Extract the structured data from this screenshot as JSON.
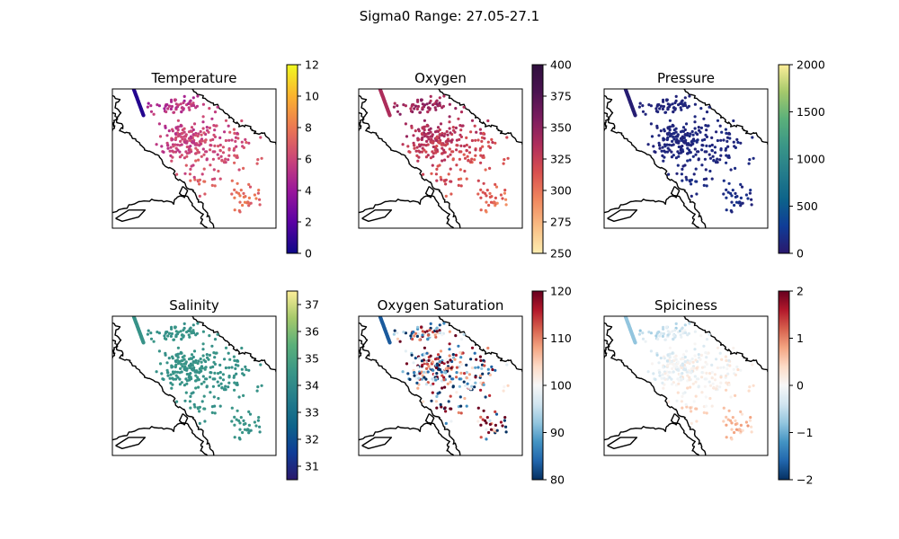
{
  "figure": {
    "suptitle": "Sigma0 Range: 27.05-27.1"
  },
  "chart_data": [
    {
      "type": "scatter",
      "title": "Temperature",
      "colormap": "plasma",
      "colorbar": {
        "range": [
          0,
          12
        ],
        "ticks": [
          "0",
          "2",
          "4",
          "6",
          "8",
          "10",
          "12"
        ]
      },
      "typical_values": [
        5.5,
        7.5
      ],
      "xlabel": "",
      "ylabel": "",
      "grid": false
    },
    {
      "type": "scatter",
      "title": "Oxygen",
      "colormap": "matter",
      "colorbar": {
        "range": [
          250,
          400
        ],
        "ticks": [
          "250",
          "275",
          "300",
          "325",
          "350",
          "375",
          "400"
        ]
      },
      "typical_values": [
        280,
        360
      ],
      "xlabel": "",
      "ylabel": "",
      "grid": false
    },
    {
      "type": "scatter",
      "title": "Pressure",
      "colormap": "haline",
      "colorbar": {
        "range": [
          0,
          2000
        ],
        "ticks": [
          "0",
          "500",
          "1000",
          "1500",
          "2000"
        ]
      },
      "typical_values": [
        0,
        300
      ],
      "xlabel": "",
      "ylabel": "",
      "grid": false
    },
    {
      "type": "scatter",
      "title": "Salinity",
      "colormap": "haline",
      "colorbar": {
        "range": [
          30.5,
          37.5
        ],
        "ticks": [
          "31",
          "32",
          "33",
          "34",
          "35",
          "36",
          "37"
        ]
      },
      "typical_values": [
        34.3,
        34.9
      ],
      "xlabel": "",
      "ylabel": "",
      "grid": false
    },
    {
      "type": "scatter",
      "title": "Oxygen Saturation",
      "colormap": "RdBu_r",
      "colorbar": {
        "range": [
          80,
          120
        ],
        "ticks": [
          "80",
          "90",
          "100",
          "110",
          "120"
        ]
      },
      "typical_values": [
        82,
        118
      ],
      "xlabel": "",
      "ylabel": "",
      "grid": false
    },
    {
      "type": "scatter",
      "title": "Spiciness",
      "colormap": "RdBu_r",
      "colorbar": {
        "range": [
          -2,
          2
        ],
        "ticks": [
          "−2",
          "−1",
          "0",
          "1",
          "2"
        ]
      },
      "typical_values": [
        -0.8,
        0.9
      ],
      "xlabel": "",
      "ylabel": "",
      "grid": false
    }
  ]
}
